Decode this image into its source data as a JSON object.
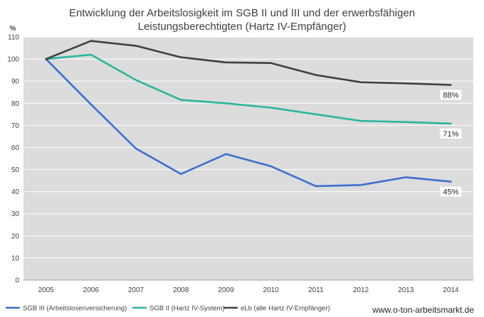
{
  "chart_data": {
    "type": "line",
    "title": [
      "Entwicklung der Arbeitslosigkeit im SGB II und III und der erwerbsfähigen",
      "Leistungsberechtigten (Hartz IV-Empfänger)"
    ],
    "yunit": "%",
    "x": [
      "2005",
      "2006",
      "2007",
      "2008",
      "2009",
      "2010",
      "2011",
      "2012",
      "2013",
      "2014"
    ],
    "ylim": [
      0,
      110
    ],
    "yticks": [
      0,
      10,
      20,
      30,
      40,
      50,
      60,
      70,
      80,
      90,
      100,
      110
    ],
    "grid": true,
    "legend_position": "bottom",
    "series": [
      {
        "name": "SGB III (Arbeitslosenversicherung)",
        "color": "#3c6fd1",
        "values": [
          100,
          79.5,
          59.5,
          48,
          57,
          51.5,
          42.5,
          43,
          46.5,
          44.5
        ],
        "end_label": "45%"
      },
      {
        "name": "SGB II (Hartz IV-System)",
        "color": "#2bb5a0",
        "values": [
          100,
          102,
          90.5,
          81.5,
          80,
          78,
          75,
          72,
          71.5,
          70.8
        ],
        "end_label": "71%"
      },
      {
        "name": "eLb (alle Hartz IV-Empfänger)",
        "color": "#404040",
        "values": [
          100,
          108.2,
          106,
          100.8,
          98.5,
          98.2,
          92.8,
          89.5,
          89,
          88.3
        ],
        "end_label": "88%"
      }
    ]
  },
  "credit": "www.o-ton-arbeitsmarkt.de"
}
